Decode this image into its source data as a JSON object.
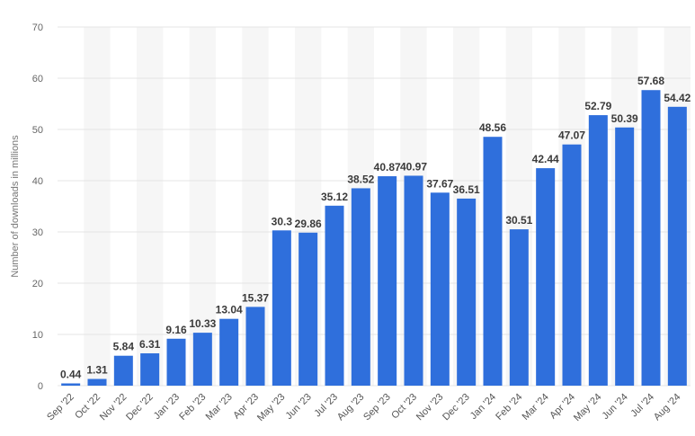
{
  "chart_data": {
    "type": "bar",
    "title": "",
    "xlabel": "",
    "ylabel": "Number of downloads in millions",
    "ylim": [
      0,
      70
    ],
    "yticks": [
      0,
      10,
      20,
      30,
      40,
      50,
      60,
      70
    ],
    "grid": true,
    "categories": [
      "Sep '22",
      "Oct '22",
      "Nov '22",
      "Dec '22",
      "Jan '23",
      "Feb '23",
      "Mar '23",
      "Apr '23",
      "May '23",
      "Jun '23",
      "Jul '23",
      "Aug '23",
      "Sep '23",
      "Oct '23",
      "Nov '23",
      "Dec '23",
      "Jan '24",
      "Feb '24",
      "Mar '24",
      "Apr '24",
      "May '24",
      "Jun '24",
      "Jul '24",
      "Aug '24"
    ],
    "values": [
      0.44,
      1.31,
      5.84,
      6.31,
      9.16,
      10.33,
      13.04,
      15.37,
      30.3,
      29.86,
      35.12,
      38.52,
      40.87,
      40.97,
      37.67,
      36.51,
      48.56,
      30.51,
      42.44,
      47.07,
      52.79,
      50.39,
      57.68,
      54.42
    ],
    "value_labels": [
      "0.44",
      "1.31",
      "5.84",
      "6.31",
      "9.16",
      "10.33",
      "13.04",
      "15.37",
      "30.3",
      "29.86",
      "35.12",
      "38.52",
      "40.87",
      "40.97",
      "37.67",
      "36.51",
      "48.56",
      "30.51",
      "42.44",
      "47.07",
      "52.79",
      "50.39",
      "57.68",
      "54.42"
    ],
    "bar_color": "#2f6fdc"
  }
}
